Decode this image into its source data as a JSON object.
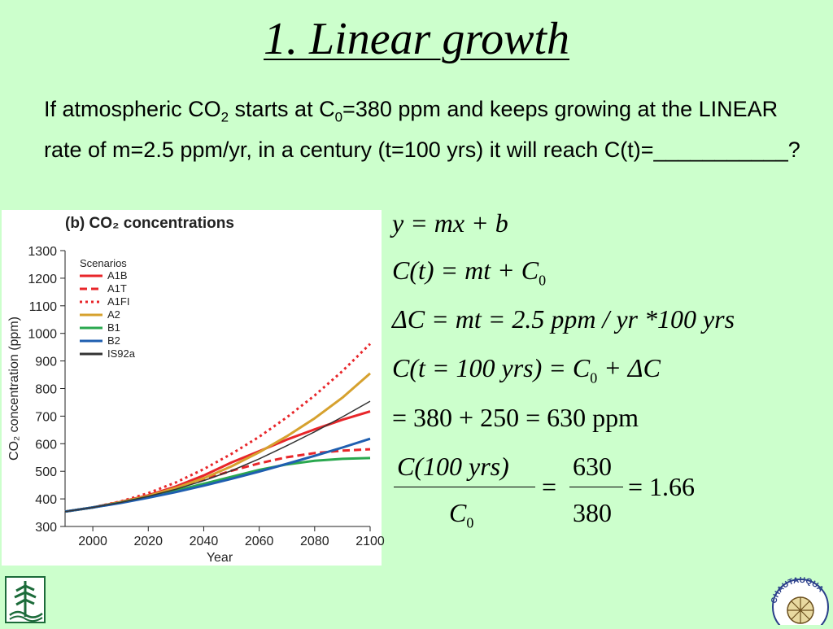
{
  "slide": {
    "title": "1. Linear growth",
    "question": {
      "p1": "If atmospheric CO",
      "sub1": "2",
      "p2": " starts at C",
      "sub2": "0",
      "p3": "=380 ppm and keeps growing at the LINEAR rate of m=2.5 ppm/yr, in a century (t=100 yrs) it will reach C(t)=___________?"
    }
  },
  "equations": {
    "eq1": "y = mx + b",
    "eq2": {
      "lhs": "C(t) = mt + C",
      "sub": "0"
    },
    "eq3": "ΔC = mt = 2.5 ppm / yr *100 yrs",
    "eq4": {
      "lhs": "C(t = 100 yrs) = C",
      "sub": "0",
      "rhs": " + ΔC"
    },
    "eq5": "= 380 + 250 = 630 ppm",
    "eq6": {
      "num": "C(100 yrs)",
      "den": "C",
      "den_sub": "0",
      "eq": "=",
      "num2": "630",
      "den2": "380",
      "result": "= 1.66"
    }
  },
  "logos": {
    "left": "tree-logo-icon",
    "right": {
      "icon": "chautauqua-seal-icon",
      "text": "CHAUTAUQUA"
    }
  },
  "chart_data": {
    "type": "line",
    "title": "(b) CO₂ concentrations",
    "xlabel": "Year",
    "ylabel": "CO₂ concentration (ppm)",
    "xlim": [
      1990,
      2100
    ],
    "ylim": [
      300,
      1300
    ],
    "x_ticks": [
      2000,
      2020,
      2040,
      2060,
      2080,
      2100
    ],
    "y_ticks": [
      300,
      400,
      500,
      600,
      700,
      800,
      900,
      1000,
      1100,
      1200,
      1300
    ],
    "grid": false,
    "legend_title": "Scenarios",
    "legend_position": "top-left",
    "x": [
      1990,
      2000,
      2010,
      2020,
      2030,
      2040,
      2050,
      2060,
      2070,
      2080,
      2090,
      2100
    ],
    "series": [
      {
        "name": "A1B",
        "color": "#e8262a",
        "dash": "solid",
        "values": [
          354,
          369,
          389,
          413,
          445,
          485,
          532,
          573,
          615,
          652,
          687,
          717
        ]
      },
      {
        "name": "A1T",
        "color": "#e8262a",
        "dash": "dashed",
        "values": [
          354,
          369,
          389,
          412,
          439,
          470,
          502,
          529,
          551,
          566,
          575,
          580
        ]
      },
      {
        "name": "A1FI",
        "color": "#e8262a",
        "dash": "dotted",
        "values": [
          354,
          369,
          391,
          421,
          460,
          508,
          563,
          625,
          696,
          775,
          863,
          962
        ]
      },
      {
        "name": "A2",
        "color": "#d6a12e",
        "dash": "solid",
        "values": [
          354,
          369,
          388,
          411,
          440,
          475,
          518,
          569,
          627,
          692,
          767,
          855
        ]
      },
      {
        "name": "B1",
        "color": "#2aa84f",
        "dash": "solid",
        "values": [
          354,
          369,
          386,
          407,
          430,
          455,
          480,
          505,
          525,
          538,
          545,
          548
        ]
      },
      {
        "name": "B2",
        "color": "#1f5fb0",
        "dash": "solid",
        "values": [
          354,
          369,
          385,
          404,
          425,
          448,
          473,
          499,
          527,
          556,
          586,
          618
        ]
      },
      {
        "name": "IS92a",
        "color": "#333333",
        "dash": "solid",
        "values": [
          354,
          369,
          387,
          409,
          435,
          466,
          502,
          545,
          593,
          643,
          697,
          754
        ]
      }
    ]
  }
}
